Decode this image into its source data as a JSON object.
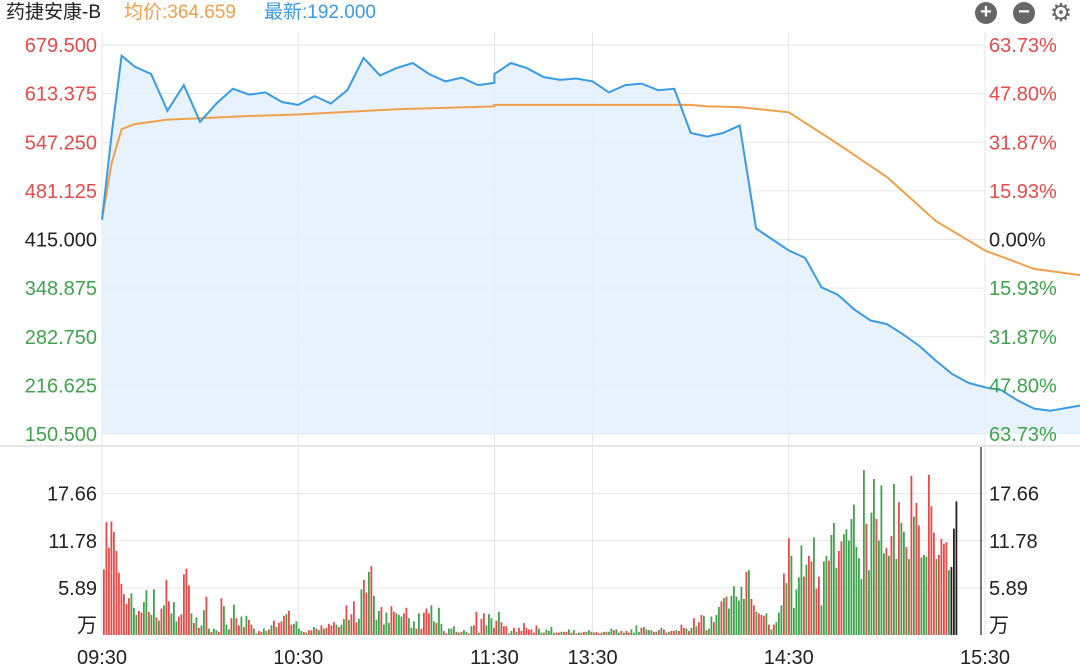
{
  "header": {
    "stock_name": "药捷安康-B",
    "avg_price_text": "均价:364.659",
    "latest_price_text": "最新:192.000",
    "zoom_in_icon": "plus-circle-icon",
    "zoom_out_icon": "minus-circle-icon",
    "settings_icon": "gear-icon"
  },
  "colors": {
    "price_line": "#3a9be4",
    "avg_line": "#f0a04b",
    "up": "#e84a4a",
    "down": "#3fa34d",
    "neutral": "#222222",
    "grid": "#e6e6e6",
    "fill": "#e3f0fb"
  },
  "chart_data": [
    {
      "type": "line",
      "series": [
        {
          "x": [
            "09:30",
            "09:33",
            "09:36",
            "09:40",
            "09:45",
            "09:50",
            "09:55",
            "10:00",
            "10:05",
            "10:10",
            "10:15",
            "10:20",
            "10:25",
            "10:30",
            "10:35",
            "10:40",
            "10:45",
            "10:50",
            "10:55",
            "11:00",
            "11:05",
            "11:10",
            "11:15",
            "11:20",
            "11:25",
            "11:30",
            "13:00",
            "13:05",
            "13:10",
            "13:15",
            "13:20",
            "13:25",
            "13:30",
            "13:35",
            "13:40",
            "13:45",
            "13:50",
            "13:55",
            "14:00",
            "14:05",
            "14:10",
            "14:15",
            "14:20",
            "14:25",
            "14:30",
            "14:35",
            "14:40",
            "14:45",
            "14:50",
            "14:55",
            "15:00",
            "15:05",
            "15:10",
            "15:15",
            "15:20",
            "15:25",
            "15:30",
            "15:35",
            "15:40",
            "15:45",
            "15:50",
            "15:55",
            "16:00",
            "16:05",
            "16:08"
          ],
          "values": [
            442,
            560,
            665,
            650,
            640,
            590,
            625,
            575,
            600,
            620,
            612,
            615,
            602,
            598,
            610,
            600,
            618,
            662,
            638,
            648,
            655,
            640,
            630,
            635,
            625,
            628,
            640,
            655,
            648,
            636,
            632,
            634,
            630,
            615,
            625,
            627,
            618,
            620,
            560,
            555,
            560,
            570,
            430,
            415,
            400,
            390,
            350,
            340,
            320,
            305,
            300,
            286,
            270,
            250,
            232,
            220,
            214,
            210,
            196,
            185,
            182,
            186,
            190,
            192,
            192
          ]
        },
        {
          "x": [
            "09:30",
            "09:33",
            "09:36",
            "09:40",
            "09:50",
            "10:00",
            "10:15",
            "10:30",
            "11:00",
            "11:30",
            "13:00",
            "13:30",
            "14:00",
            "14:05",
            "14:15",
            "14:30",
            "14:45",
            "15:00",
            "15:15",
            "15:30",
            "15:45",
            "16:00",
            "16:08"
          ],
          "values": [
            442,
            520,
            565,
            572,
            578,
            580,
            583,
            585,
            592,
            596,
            598,
            598,
            598,
            596,
            595,
            588,
            545,
            500,
            440,
            400,
            375,
            366,
            364.659
          ]
        }
      ],
      "y_ticks": [
        "679.500",
        "613.375",
        "547.250",
        "481.125",
        "415.000",
        "348.875",
        "282.750",
        "216.625",
        "150.500"
      ],
      "right_ticks": [
        "63.73%",
        "47.80%",
        "31.87%",
        "15.93%",
        "0.00%",
        "15.93%",
        "31.87%",
        "47.80%",
        "63.73%"
      ],
      "ylim": [
        150.5,
        679.5
      ],
      "prev_close": 415.0,
      "grid": true
    },
    {
      "type": "bar",
      "y_ticks": [
        "17.66",
        "11.78",
        "5.89"
      ],
      "unit": "万",
      "ylim": [
        0,
        23.5
      ],
      "x_ticks": [
        "09:30",
        "10:30",
        "11:30",
        "13:30",
        "14:30",
        "15:30"
      ],
      "values": [
        8.2,
        14.1,
        10.9,
        14.2,
        12.9,
        10.5,
        7.8,
        6.4,
        5.1,
        3.9,
        4.6,
        5.2,
        3.4,
        2.5,
        3.0,
        2.8,
        4.1,
        5.6,
        2.9,
        2.5,
        5.7,
        2.2,
        1.8,
        3.3,
        3.7,
        6.9,
        4.2,
        2.7,
        4.1,
        1.7,
        2.3,
        2.6,
        7.6,
        8.3,
        6.2,
        2.7,
        1.5,
        2.2,
        0.9,
        1.2,
        3.1,
        4.8,
        0.8,
        0.4,
        0.8,
        0.6,
        0.4,
        4.6,
        3.6,
        1.3,
        0.7,
        2.1,
        3.8,
        2.1,
        1.2,
        2.3,
        1.0,
        2.4,
        1.9,
        1.3,
        0.8,
        0.2,
        0.5,
        0.4,
        0.8,
        0.5,
        0.7,
        1.2,
        1.8,
        1.0,
        1.5,
        1.7,
        2.4,
        2.6,
        3.0,
        1.3,
        1.4,
        1.7,
        0.8,
        0.5,
        0.4,
        0.3,
        0.6,
        0.6,
        1.0,
        0.8,
        0.6,
        1.2,
        0.8,
        0.9,
        1.4,
        1.2,
        1.6,
        1.3,
        1.0,
        1.3,
        2.0,
        3.7,
        1.9,
        2.6,
        4.2,
        1.6,
        2.0,
        5.7,
        6.9,
        5.3,
        7.9,
        8.6,
        4.9,
        1.9,
        3.0,
        3.5,
        1.3,
        2.8,
        1.5,
        3.6,
        2.9,
        2.7,
        2.5,
        2.3,
        2.7,
        3.4,
        2.1,
        0.9,
        1.7,
        0.8,
        2.7,
        0.8,
        2.8,
        3.3,
        2.7,
        3.7,
        1.7,
        1.5,
        3.4,
        1.4,
        0.5,
        0.2,
        0.8,
        0.8,
        1.1,
        0.4,
        0.3,
        0.4,
        0.6,
        0.4,
        0.2,
        1.1,
        1.2,
        2.9,
        0.3,
        2.0,
        2.7,
        1.2,
        2.6,
        2.1,
        0.9,
        1.8,
        2.9,
        1.6,
        1.1,
        1.1,
        0.2,
        0.5,
        0.9,
        0.4,
        0.9,
        0.5,
        1.5,
        0.9,
        0.7,
        0.7,
        0.3,
        1.2,
        0.8,
        0.3,
        0.3,
        0.7,
        0.5,
        1.0,
        0.3,
        0.3,
        0.3,
        0.4,
        0.4,
        0.4,
        0.7,
        0.3,
        0.6,
        0.2,
        0.3,
        0.3,
        0.4,
        0.4,
        0.6,
        0.4,
        0.3,
        0.4,
        0.2,
        0.3,
        0.4,
        0.4,
        0.4,
        0.8,
        0.6,
        0.7,
        0.3,
        0.5,
        0.3,
        0.5,
        0.3,
        0.7,
        0.3,
        1.2,
        0.4,
        0.9,
        1.0,
        0.7,
        0.6,
        0.6,
        0.4,
        0.4,
        0.6,
        0.9,
        0.7,
        0.3,
        0.4,
        0.5,
        0.5,
        0.6,
        0.5,
        1.3,
        0.9,
        0.8,
        0.5,
        0.9,
        2.1,
        1.1,
        1.6,
        2.5,
        2.4,
        0.6,
        0.8,
        2.3,
        1.6,
        2.5,
        3.5,
        4.2,
        4.6,
        4.8,
        3.3,
        4.9,
        6.1,
        4.8,
        4.3,
        6.0,
        4.5,
        7.9,
        8.1,
        4.5,
        3.7,
        2.9,
        2.7,
        2.5,
        2.4,
        2.7,
        1.3,
        0.7,
        1.3,
        1.6,
        2.8,
        3.7,
        7.7,
        6.5,
        12.1,
        9.9,
        3.4,
        5.7,
        7.2,
        11.2,
        7.3,
        8.8,
        9.9,
        9.2,
        12.2,
        5.8,
        7.3,
        3.7,
        9.2,
        9.9,
        9.3,
        12.5,
        14.0,
        8.4,
        10.5,
        11.7,
        12.6,
        13.2,
        11.8,
        14.5,
        16.3,
        11.0,
        9.6,
        7.0,
        20.6,
        13.9,
        8.1,
        15.3,
        19.5,
        14.5,
        11.8,
        18.7,
        10.2,
        10.9,
        9.9,
        12.4,
        18.9,
        9.5,
        16.6,
        14.0,
        12.9,
        11.0,
        9.5,
        19.9,
        14.8,
        16.5,
        13.7,
        9.7,
        10.0,
        9.8,
        20.0,
        16.1,
        12.8,
        9.5,
        10.0,
        12.0,
        11.4,
        11.6,
        8.1,
        8.5,
        13.3,
        16.7
      ],
      "value_colors": "rrrrrrrrrrrgggrrggrggrgrgrrgggrrrrrgrgrggrgrggrrgggrgrrgrgrrggrrggrgrgrrrgrrggggrgrrgrgrgrrrrgrggrgrrrggrrgrgggrgggrrgggrrgggrgrrrrggrggrrgggrgrggrgrrgrrgggrrgrrrggrgrrrrrrrrggrggggrrgrrgrgrgrrggrgrrrgrggrggrgrrggggrgrggrgrgrrgrrgrrrgrgrgrrgrggrggrgrgggggggrgrrgrrrgrgrgggrgrgggggrgrrgrrgggrgggrrgggggggggrgggrgggrgrggrggrgrgrrgggrrrgrrrrgk"
    }
  ]
}
